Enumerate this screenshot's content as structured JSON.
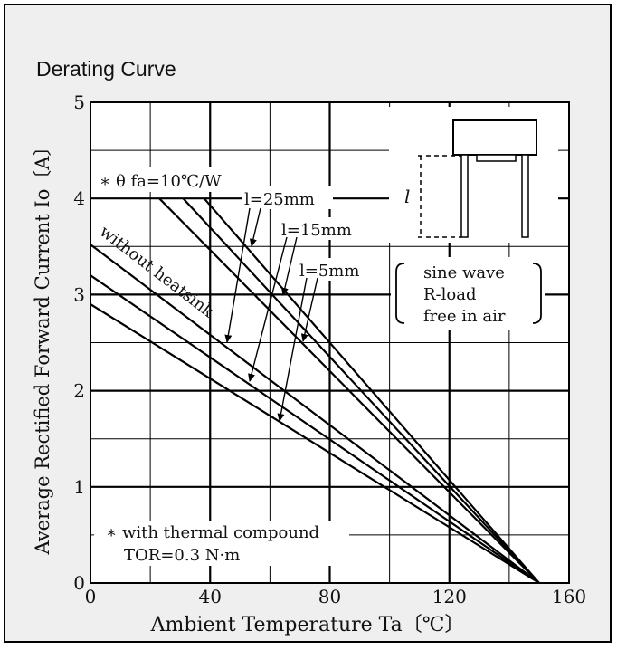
{
  "chart_data": {
    "type": "line",
    "title": "Derating Curve",
    "xlabel": "Ambient Temperature Ta〔℃〕",
    "ylabel": "Average Rectified Forward Current Io〔A〕",
    "xlim": [
      0,
      160
    ],
    "ylim": [
      0,
      5
    ],
    "x_ticks": [
      "0",
      "40",
      "80",
      "120",
      "160"
    ],
    "y_ticks": [
      "0",
      "1",
      "2",
      "3",
      "4",
      "5"
    ],
    "grid": true,
    "series": [
      {
        "name": "l=25mm",
        "x": [
          23,
          150
        ],
        "y": [
          4.0,
          0
        ]
      },
      {
        "name": "l=15mm",
        "x": [
          31,
          150
        ],
        "y": [
          4.0,
          0
        ]
      },
      {
        "name": "l=5mm",
        "x": [
          38,
          150
        ],
        "y": [
          4.0,
          0
        ]
      },
      {
        "name": "l=25mm",
        "x": [
          0,
          150
        ],
        "y": [
          3.52,
          0
        ]
      },
      {
        "name": "l=15mm",
        "x": [
          0,
          150
        ],
        "y": [
          3.2,
          0
        ]
      },
      {
        "name": "l=5mm",
        "x": [
          0,
          150
        ],
        "y": [
          2.9,
          0
        ]
      }
    ],
    "annotations": {
      "heatsink_note": "∗ θ fa=10℃/W",
      "without_heatsink": "without heatsink",
      "label_25": "l=25mm",
      "label_15": "l=15mm",
      "label_5": "l=5mm",
      "lead_length_symbol": "l",
      "conditions": [
        "sine wave",
        "R-load",
        "free in air"
      ],
      "footnote_line1": "∗ with thermal compound",
      "footnote_line2": "TOR=0.3 N·m"
    }
  }
}
